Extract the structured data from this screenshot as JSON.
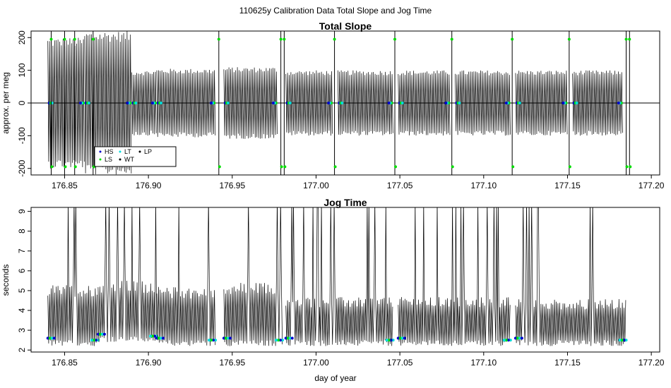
{
  "figure": {
    "title": "110625y   Calibration Data Total Slope and Jog Time"
  },
  "chart_data": [
    {
      "type": "line",
      "title": "Total Slope",
      "xlabel": "",
      "ylabel": "approx. per meg",
      "xlim": [
        176.83,
        177.205
      ],
      "ylim": [
        -220,
        220
      ],
      "xticks": [
        176.85,
        176.9,
        176.95,
        177.0,
        177.05,
        177.1,
        177.15,
        177.2
      ],
      "xtick_labels": [
        "176.85",
        "176.90",
        "176.95",
        "177.00",
        "177.05",
        "177.10",
        "177.15",
        "177.20"
      ],
      "yticks": [
        -200,
        -100,
        0,
        100,
        200
      ],
      "ytick_labels": [
        "-200",
        "-100",
        "0",
        "100",
        "200"
      ],
      "reference_line": 0,
      "legend": {
        "position": "bottom-left",
        "entries": [
          {
            "label": "HS",
            "color": "#0000cc"
          },
          {
            "label": "LS",
            "color": "#00dd00"
          },
          {
            "label": "LT",
            "color": "#00dddd"
          },
          {
            "label": "WT",
            "color": "#000000"
          },
          {
            "label": "LP",
            "color": "#000000"
          }
        ]
      },
      "series": [
        {
          "color": "#000000",
          "segments": [
            {
              "x": [
                176.84,
                176.862
              ],
              "amp": 200
            },
            {
              "x": [
                176.862,
                176.89
              ],
              "amp": 220
            },
            {
              "x": [
                176.89,
                176.905
              ],
              "amp": 100
            },
            {
              "x": [
                176.905,
                176.94
              ],
              "amp": 105
            },
            {
              "x": [
                176.945,
                176.977
              ],
              "amp": 110
            },
            {
              "x": [
                176.982,
                177.01
              ],
              "amp": 100
            },
            {
              "x": [
                177.013,
                177.046
              ],
              "amp": 100
            },
            {
              "x": [
                177.049,
                177.08
              ],
              "amp": 100
            },
            {
              "x": [
                177.083,
                177.116
              ],
              "amp": 100
            },
            {
              "x": [
                177.119,
                177.15
              ],
              "amp": 100
            },
            {
              "x": [
                177.153,
                177.183
              ],
              "amp": 100
            }
          ],
          "spikes": [
            176.842,
            176.85,
            176.856,
            176.867,
            176.942,
            176.979,
            176.981,
            177.011,
            177.047,
            177.081,
            177.117,
            177.151,
            177.185,
            177.187
          ]
        }
      ]
    },
    {
      "type": "line",
      "title": "Jog Time",
      "xlabel": "day of year",
      "ylabel": "seconds",
      "xlim": [
        176.83,
        177.205
      ],
      "ylim": [
        1.9,
        9.2
      ],
      "xticks": [
        176.85,
        176.9,
        176.95,
        177.0,
        177.05,
        177.1,
        177.15,
        177.2
      ],
      "xtick_labels": [
        "176.85",
        "176.90",
        "176.95",
        "177.00",
        "177.05",
        "177.10",
        "177.15",
        "177.20"
      ],
      "yticks": [
        2,
        3,
        4,
        5,
        6,
        7,
        8,
        9
      ],
      "ytick_labels": [
        "2",
        "3",
        "4",
        "5",
        "6",
        "7",
        "8",
        "9"
      ],
      "series": [
        {
          "color": "#000000",
          "segments": [
            {
              "x": [
                176.84,
                176.87
              ],
              "low": 2.2,
              "high": 5.1
            },
            {
              "x": [
                176.87,
                176.905
              ],
              "low": 2.4,
              "high": 5.3
            },
            {
              "x": [
                176.905,
                176.94
              ],
              "low": 2.2,
              "high": 5.0
            },
            {
              "x": [
                176.945,
                176.98
              ],
              "low": 2.2,
              "high": 5.2
            },
            {
              "x": [
                176.982,
                177.046
              ],
              "low": 2.2,
              "high": 4.5
            },
            {
              "x": [
                177.049,
                177.116
              ],
              "low": 2.2,
              "high": 4.5
            },
            {
              "x": [
                177.119,
                177.185
              ],
              "low": 2.2,
              "high": 4.4
            }
          ]
        }
      ]
    }
  ]
}
